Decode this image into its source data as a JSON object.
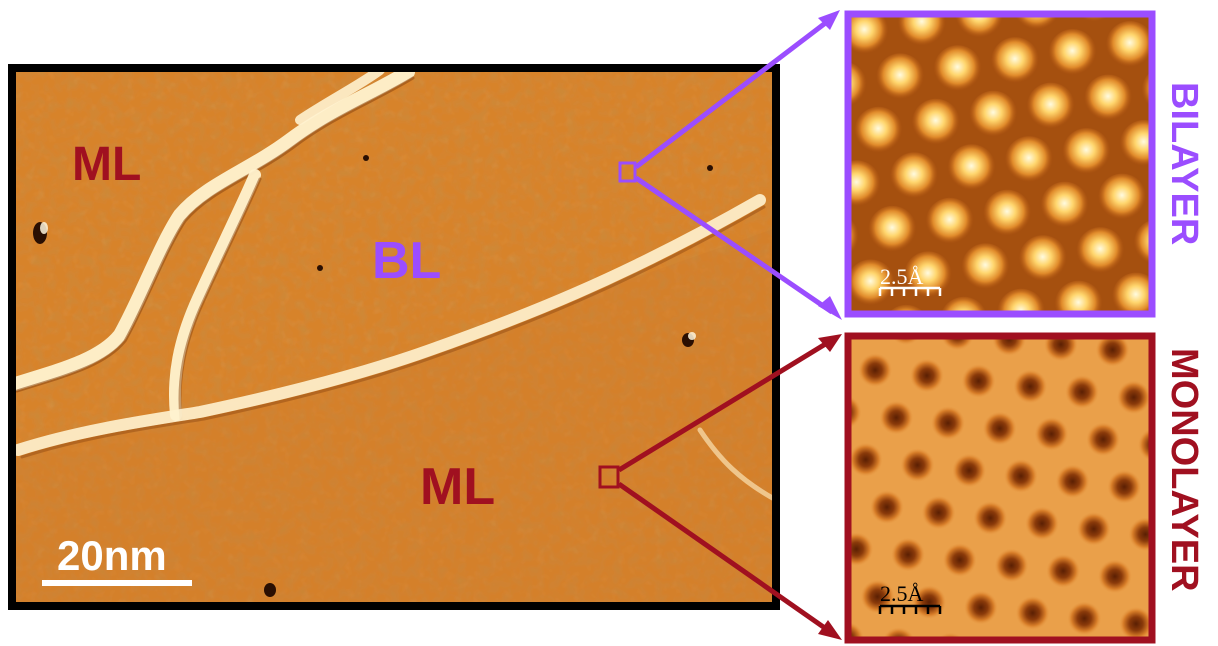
{
  "main_image": {
    "region_labels": {
      "ml_top": "ML",
      "bl": "BL",
      "ml_bottom": "ML"
    },
    "scale_bar_label": "20nm"
  },
  "insets": {
    "bilayer": {
      "side_label": "BILAYER",
      "scale_label": "2.5Å",
      "color": "#9b4dff"
    },
    "monolayer": {
      "side_label": "MONOLAYER",
      "scale_label": "2.5Å",
      "color": "#a01020"
    }
  },
  "colors": {
    "surface_base": "#d7832c",
    "surface_light": "#ffe7b0",
    "surface_dark": "#7a3a0c",
    "frame": "#000000",
    "bilayer_accent": "#9b4dff",
    "monolayer_accent": "#a01020"
  }
}
